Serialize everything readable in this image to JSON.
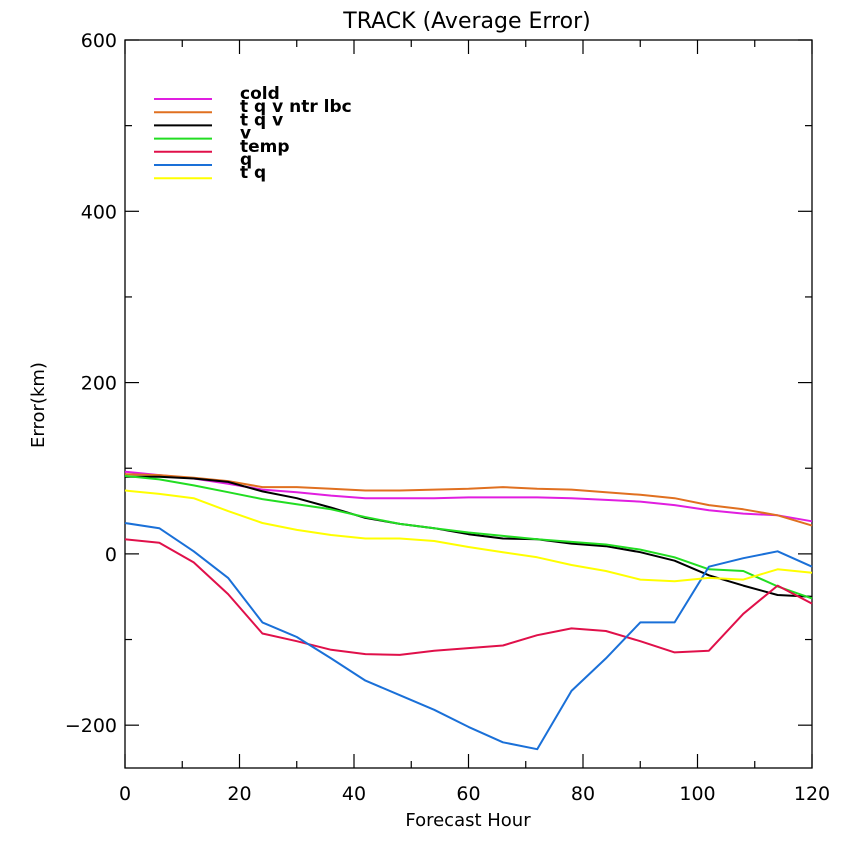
{
  "chart_data": {
    "type": "line",
    "title": "TRACK (Average Error)",
    "xlabel": "Forecast Hour",
    "ylabel": "Error(km)",
    "xlim": [
      0,
      120
    ],
    "ylim": [
      -250,
      600
    ],
    "xticks": [
      0,
      20,
      40,
      60,
      80,
      100,
      120
    ],
    "yticks": [
      -200,
      0,
      200,
      400,
      600
    ],
    "grid": false,
    "legend_position": "top-left",
    "x": [
      0,
      6,
      12,
      18,
      24,
      30,
      36,
      42,
      48,
      54,
      60,
      66,
      72,
      78,
      84,
      90,
      96,
      102,
      108,
      114,
      120
    ],
    "series": [
      {
        "name": "cold",
        "color": "#e01ee0",
        "values": [
          96,
          92,
          88,
          82,
          75,
          72,
          68,
          65,
          65,
          65,
          66,
          66,
          66,
          65,
          63,
          61,
          57,
          51,
          47,
          45,
          38
        ]
      },
      {
        "name": "t q v ntr lbc",
        "color": "#e07020",
        "values": [
          93,
          92,
          89,
          85,
          78,
          78,
          76,
          74,
          74,
          75,
          76,
          78,
          76,
          75,
          72,
          69,
          65,
          57,
          52,
          45,
          33
        ]
      },
      {
        "name": "t q v",
        "color": "#000000",
        "values": [
          90,
          90,
          88,
          84,
          73,
          65,
          54,
          42,
          35,
          30,
          23,
          18,
          17,
          12,
          9,
          2,
          -8,
          -25,
          -37,
          -48,
          -50
        ]
      },
      {
        "name": "v",
        "color": "#22dd22",
        "values": [
          91,
          87,
          80,
          72,
          64,
          58,
          52,
          43,
          35,
          30,
          25,
          21,
          17,
          14,
          11,
          5,
          -4,
          -18,
          -20,
          -38,
          -52
        ]
      },
      {
        "name": "temp",
        "color": "#e0104a",
        "values": [
          17,
          13,
          -10,
          -47,
          -93,
          -102,
          -112,
          -117,
          -118,
          -113,
          -110,
          -107,
          -95,
          -87,
          -90,
          -102,
          -115,
          -113,
          -70,
          -37,
          -58
        ]
      },
      {
        "name": "q",
        "color": "#1a70d8",
        "values": [
          36,
          30,
          3,
          -28,
          -80,
          -97,
          -122,
          -148,
          -165,
          -182,
          -202,
          -220,
          -228,
          -160,
          -122,
          -80,
          -80,
          -15,
          -5,
          3,
          -15
        ]
      },
      {
        "name": "t q",
        "color": "#ffff00",
        "values": [
          74,
          70,
          65,
          50,
          36,
          28,
          22,
          18,
          18,
          15,
          8,
          2,
          -4,
          -13,
          -20,
          -30,
          -32,
          -28,
          -30,
          -18,
          -22
        ]
      }
    ]
  }
}
